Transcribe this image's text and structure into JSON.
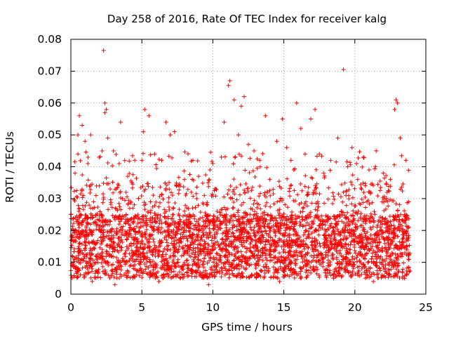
{
  "chart_data": {
    "type": "scatter",
    "title": "Day 258 of 2016, Rate Of TEC Index for receiver kalg",
    "xlabel": "GPS time / hours",
    "ylabel": "ROTI / TECUs",
    "xlim": [
      0,
      25
    ],
    "ylim": [
      0,
      0.08
    ],
    "xticks": [
      "0",
      "5",
      "10",
      "15",
      "20",
      "25"
    ],
    "xtick_values": [
      0,
      5,
      10,
      15,
      20,
      25
    ],
    "yticks": [
      "0",
      "0.01",
      "0.02",
      "0.03",
      "0.04",
      "0.05",
      "0.06",
      "0.07",
      "0.08"
    ],
    "ytick_values": [
      0,
      0.01,
      0.02,
      0.03,
      0.04,
      0.05,
      0.06,
      0.07,
      0.08
    ],
    "grid": true,
    "marker": "+",
    "color": "#ff0000",
    "series": [
      {
        "name": "ROTI",
        "note": "dense scatter of several thousand samples from 0 to ~23.8 h; representative points listed",
        "points": [
          [
            0.1,
            0.012
          ],
          [
            0.3,
            0.038
          ],
          [
            0.5,
            0.05
          ],
          [
            0.5,
            0.044
          ],
          [
            0.6,
            0.056
          ],
          [
            0.8,
            0.053
          ],
          [
            1.0,
            0.048
          ],
          [
            1.2,
            0.041
          ],
          [
            1.4,
            0.05
          ],
          [
            1.6,
            0.029
          ],
          [
            2.0,
            0.034
          ],
          [
            2.2,
            0.045
          ],
          [
            2.3,
            0.0765
          ],
          [
            2.4,
            0.06
          ],
          [
            2.4,
            0.057
          ],
          [
            2.5,
            0.058
          ],
          [
            2.6,
            0.049
          ],
          [
            3.0,
            0.045
          ],
          [
            3.2,
            0.033
          ],
          [
            3.4,
            0.041
          ],
          [
            3.5,
            0.054
          ],
          [
            4.0,
            0.037
          ],
          [
            4.3,
            0.035
          ],
          [
            4.5,
            0.042
          ],
          [
            5.0,
            0.042
          ],
          [
            5.1,
            0.051
          ],
          [
            5.2,
            0.058
          ],
          [
            5.5,
            0.056
          ],
          [
            5.9,
            0.044
          ],
          [
            6.4,
            0.042
          ],
          [
            6.7,
            0.054
          ],
          [
            7.0,
            0.05
          ],
          [
            7.3,
            0.051
          ],
          [
            7.6,
            0.034
          ],
          [
            8.0,
            0.036
          ],
          [
            8.6,
            0.042
          ],
          [
            9.0,
            0.037
          ],
          [
            9.4,
            0.031
          ],
          [
            9.6,
            0.028
          ],
          [
            9.8,
            0.039
          ],
          [
            10.0,
            0.041
          ],
          [
            10.2,
            0.033
          ],
          [
            10.6,
            0.043
          ],
          [
            10.8,
            0.054
          ],
          [
            11.1,
            0.0655
          ],
          [
            11.2,
            0.067
          ],
          [
            11.5,
            0.061
          ],
          [
            11.8,
            0.05
          ],
          [
            12.0,
            0.059
          ],
          [
            12.2,
            0.062
          ],
          [
            12.5,
            0.047
          ],
          [
            12.9,
            0.045
          ],
          [
            13.3,
            0.042
          ],
          [
            13.7,
            0.056
          ],
          [
            14.0,
            0.036
          ],
          [
            14.5,
            0.048
          ],
          [
            14.9,
            0.055
          ],
          [
            15.2,
            0.046
          ],
          [
            15.5,
            0.042
          ],
          [
            15.7,
            0.039
          ],
          [
            15.9,
            0.06
          ],
          [
            16.2,
            0.052
          ],
          [
            16.5,
            0.044
          ],
          [
            16.9,
            0.055
          ],
          [
            17.2,
            0.058
          ],
          [
            17.5,
            0.044
          ],
          [
            17.8,
            0.038
          ],
          [
            18.3,
            0.042
          ],
          [
            18.8,
            0.049
          ],
          [
            19.2,
            0.0705
          ],
          [
            19.5,
            0.04
          ],
          [
            19.8,
            0.046
          ],
          [
            20.2,
            0.036
          ],
          [
            20.6,
            0.043
          ],
          [
            21.0,
            0.039
          ],
          [
            21.5,
            0.045
          ],
          [
            22.0,
            0.038
          ],
          [
            22.5,
            0.036
          ],
          [
            22.8,
            0.058
          ],
          [
            22.9,
            0.061
          ],
          [
            23.0,
            0.06
          ],
          [
            23.2,
            0.049
          ],
          [
            23.6,
            0.042
          ],
          [
            23.8,
            0.029
          ],
          [
            1.5,
            0.004
          ],
          [
            3.1,
            0.003
          ],
          [
            6.2,
            0.004
          ],
          [
            9.7,
            0.003
          ],
          [
            14.7,
            0.004
          ],
          [
            18.5,
            0.005
          ],
          [
            21.3,
            0.004
          ],
          [
            23.5,
            0.005
          ]
        ]
      }
    ]
  }
}
